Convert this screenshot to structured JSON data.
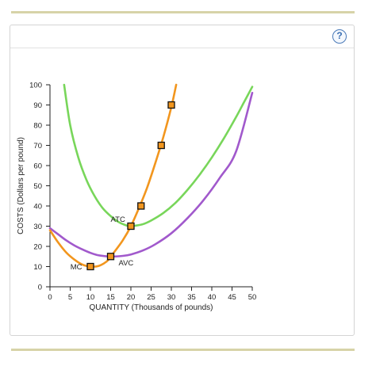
{
  "help_icon": "?",
  "chart_data": {
    "type": "line",
    "xlabel": "QUANTITY (Thousands of pounds)",
    "ylabel": "COSTS (Dollars per pound)",
    "xlim": [
      0,
      50
    ],
    "ylim": [
      0,
      100
    ],
    "xticks": [
      "0",
      "5",
      "10",
      "15",
      "20",
      "25",
      "30",
      "35",
      "40",
      "45",
      "50"
    ],
    "yticks": [
      "0",
      "10",
      "20",
      "30",
      "40",
      "50",
      "60",
      "70",
      "80",
      "90",
      "100"
    ],
    "grid": false,
    "series": [
      {
        "name": "MC",
        "color": "#f2961e",
        "x": [
          0,
          2,
          4,
          6,
          8,
          10,
          12,
          14,
          15,
          16,
          18,
          20,
          22,
          24,
          26,
          28,
          30,
          31.2
        ],
        "y": [
          28,
          22,
          17,
          13.5,
          11,
          10,
          10.3,
          12.5,
          15,
          17.5,
          23,
          30,
          39,
          49,
          61,
          74,
          89,
          100
        ]
      },
      {
        "name": "ATC",
        "color": "#78d65a",
        "x": [
          3.5,
          5,
          7,
          9,
          11,
          13,
          15,
          17,
          19,
          20,
          21,
          23,
          25,
          28,
          31,
          34,
          37,
          40,
          43,
          46,
          48,
          50
        ],
        "y": [
          100,
          80,
          64,
          53,
          45,
          39,
          35,
          32,
          30.3,
          30,
          30.2,
          31,
          32.8,
          36.5,
          41.5,
          48,
          55.5,
          64,
          73.5,
          84,
          91.5,
          99
        ]
      },
      {
        "name": "AVC",
        "color": "#a159cc",
        "x": [
          0,
          2,
          4,
          6,
          8,
          10,
          12,
          15,
          18,
          20,
          23,
          26,
          30,
          34,
          38,
          42,
          46,
          50
        ],
        "y": [
          29,
          26,
          23,
          20.5,
          18.5,
          16.8,
          15.6,
          15,
          15.3,
          16,
          18,
          21,
          26.5,
          34,
          43,
          54,
          67,
          96
        ]
      }
    ],
    "points": [
      {
        "x": 10,
        "y": 10
      },
      {
        "x": 15,
        "y": 15
      },
      {
        "x": 20,
        "y": 30
      },
      {
        "x": 22.5,
        "y": 40
      },
      {
        "x": 27.5,
        "y": 70
      },
      {
        "x": 30,
        "y": 90
      }
    ],
    "labels": [
      {
        "text": "MC",
        "x": 6.5,
        "y": 10
      },
      {
        "text": "AVC",
        "x": 18.8,
        "y": 12
      },
      {
        "text": "ATC",
        "x": 16.8,
        "y": 33.5
      }
    ],
    "marker_color": "#f2961e",
    "axis_color": "#222222"
  }
}
